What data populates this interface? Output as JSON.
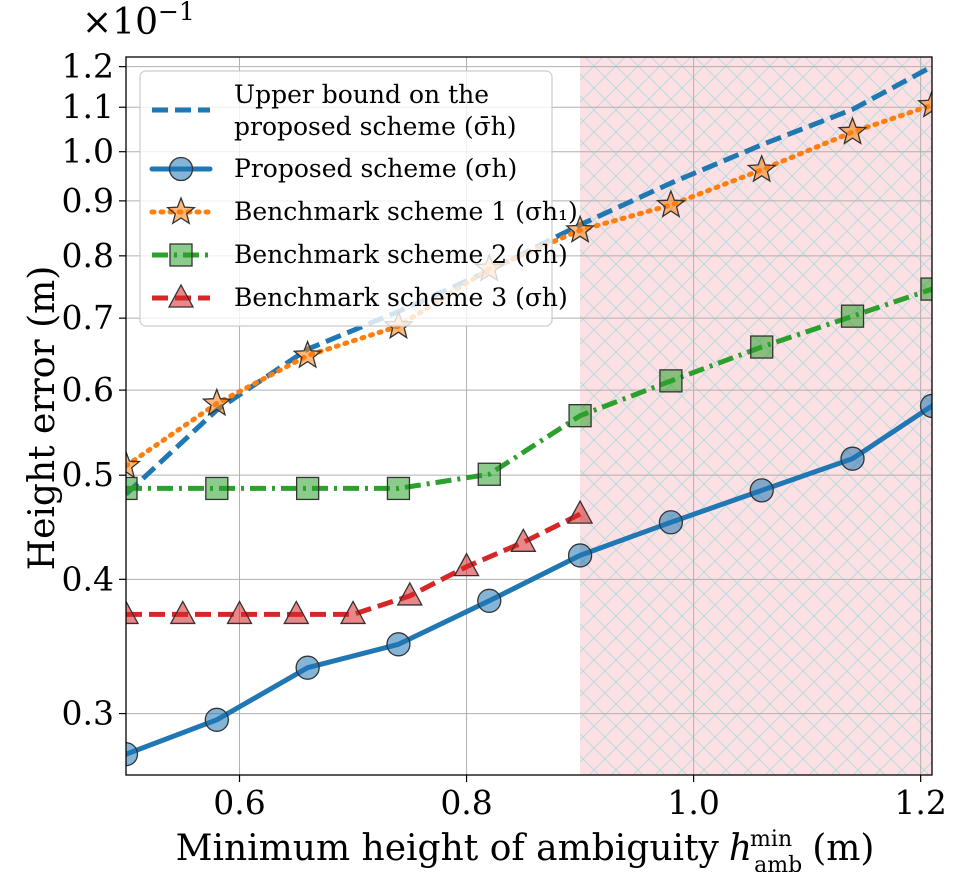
{
  "chart_data": {
    "type": "line",
    "title": "",
    "exponent_label": "×10",
    "exponent_power": "−1",
    "xlabel": "Minimum height of ambiguity",
    "xlabel_symbol": "h",
    "xlabel_sup": "min",
    "xlabel_sub": "amb",
    "xlabel_unit": "(m)",
    "ylabel": "Height error (m)",
    "xlim": [
      0.5,
      1.21
    ],
    "ylim": [
      0.263,
      1.225
    ],
    "yscale": "log",
    "x_ticks": [
      0.6,
      0.8,
      1.0,
      1.2
    ],
    "x_tick_labels": [
      "0.6",
      "0.8",
      "1.0",
      "1.2"
    ],
    "y_ticks": [
      0.3,
      0.4,
      0.5,
      0.6,
      0.7,
      0.8,
      0.9,
      1.0,
      1.1,
      1.2
    ],
    "y_tick_labels": [
      "0.3",
      "0.4",
      "0.5",
      "0.6",
      "0.7",
      "0.8",
      "0.9",
      "1.0",
      "1.1",
      "1.2"
    ],
    "shaded_region": {
      "x_start": 0.9,
      "x_end": 1.21,
      "color": "#fde0e3",
      "hatch_color": "#b8dcdd"
    },
    "legend_position": "upper-left",
    "series": [
      {
        "id": "upper",
        "name": "Upper bound on the",
        "name_line2": "proposed scheme",
        "symbol": "(σ̄h)",
        "color": "#1f77b4",
        "line_style": "dashed",
        "marker": "none",
        "x": [
          0.5,
          0.58,
          0.66,
          0.74,
          0.82,
          0.9,
          0.98,
          1.06,
          1.14,
          1.21
        ],
        "y": [
          0.48,
          0.575,
          0.655,
          0.71,
          0.775,
          0.855,
          0.935,
          1.015,
          1.095,
          1.2
        ]
      },
      {
        "id": "proposed",
        "name": "Proposed scheme",
        "symbol": "(σh)",
        "color": "#1f77b4",
        "line_style": "solid",
        "marker": "circle",
        "x": [
          0.5,
          0.58,
          0.66,
          0.74,
          0.82,
          0.9,
          0.98,
          1.06,
          1.14,
          1.21
        ],
        "y": [
          0.275,
          0.296,
          0.331,
          0.348,
          0.382,
          0.421,
          0.452,
          0.484,
          0.518,
          0.58
        ]
      },
      {
        "id": "bench1",
        "name": "Benchmark scheme 1",
        "symbol": "(σh₁)",
        "color": "#ff7f0e",
        "line_style": "dotted",
        "marker": "star",
        "x": [
          0.5,
          0.58,
          0.66,
          0.74,
          0.82,
          0.9,
          0.98,
          1.06,
          1.14,
          1.21
        ],
        "y": [
          0.51,
          0.583,
          0.646,
          0.688,
          0.778,
          0.845,
          0.892,
          0.962,
          1.043,
          1.105
        ]
      },
      {
        "id": "bench2",
        "name": "Benchmark scheme 2",
        "symbol": "(σh)",
        "color": "#2ca02c",
        "line_style": "dashdot",
        "marker": "square",
        "x": [
          0.5,
          0.58,
          0.66,
          0.74,
          0.82,
          0.9,
          0.98,
          1.06,
          1.14,
          1.21
        ],
        "y": [
          0.486,
          0.486,
          0.486,
          0.486,
          0.501,
          0.568,
          0.612,
          0.658,
          0.703,
          0.745
        ]
      },
      {
        "id": "bench3",
        "name": "Benchmark scheme 3",
        "symbol": "(σh)",
        "color": "#d62728",
        "line_style": "dashed",
        "marker": "triangle",
        "x": [
          0.5,
          0.55,
          0.6,
          0.65,
          0.7,
          0.75,
          0.8,
          0.85,
          0.9
        ],
        "y": [
          0.371,
          0.371,
          0.371,
          0.371,
          0.371,
          0.386,
          0.411,
          0.433,
          0.46
        ]
      }
    ]
  }
}
